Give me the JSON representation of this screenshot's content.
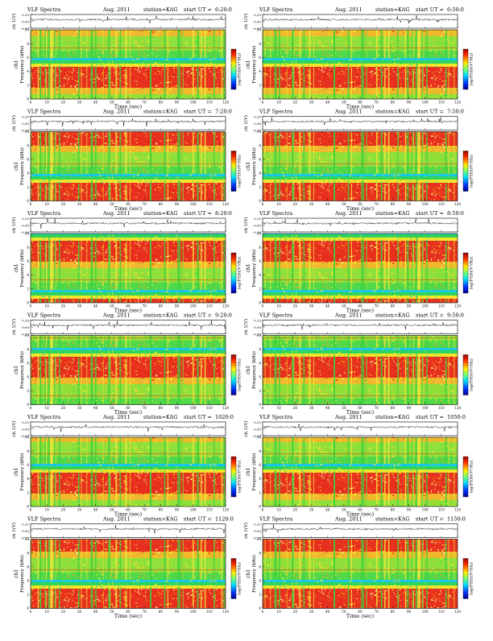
{
  "figure": {
    "header_left": "VLF Spectra",
    "header_date": "Aug. 2011",
    "header_station": "station=KAG",
    "header_start": "start UT ="
  },
  "common": {
    "waveform_ylabel": "ch 1(V)",
    "channel_label": "ch1",
    "freq_ylabel": "Frequency (kHz)",
    "xlabel": "Time (sec)",
    "colorbar_label": "log(PSD)(V²/Hz)",
    "waveform_ticks": [
      "0.20",
      "0.00",
      "-0.20"
    ],
    "freq_ticks": [
      "0",
      "2",
      "4",
      "6",
      "8",
      "10"
    ],
    "x_ticks": [
      "0",
      "10",
      "20",
      "30",
      "40",
      "50",
      "60",
      "70",
      "80",
      "90",
      "100",
      "110",
      "120"
    ],
    "colorbar_ticks": [
      "-",
      "-",
      "-",
      "-",
      "-"
    ]
  },
  "chart_data": [
    {
      "type": "heatmap",
      "start_ut": "6:20:0",
      "x_range": [
        0,
        120
      ],
      "y_range": [
        0,
        10
      ],
      "xlabel": "Time (sec)",
      "ylabel": "Frequency (kHz)",
      "colormap": "jet",
      "colorbar_label": "log(PSD)(V²/Hz)",
      "waveform_ylim": [
        -0.2,
        0.2
      ]
    },
    {
      "type": "heatmap",
      "start_ut": "6:50:0",
      "x_range": [
        0,
        120
      ],
      "y_range": [
        0,
        10
      ],
      "xlabel": "Time (sec)",
      "ylabel": "Frequency (kHz)",
      "colormap": "jet",
      "colorbar_label": "log(PSD)(V²/Hz)",
      "waveform_ylim": [
        -0.2,
        0.2
      ]
    },
    {
      "type": "heatmap",
      "start_ut": "7:20:0",
      "x_range": [
        0,
        120
      ],
      "y_range": [
        0,
        10
      ],
      "xlabel": "Time (sec)",
      "ylabel": "Frequency (kHz)",
      "colormap": "jet",
      "colorbar_label": "log(PSD)(V²/Hz)",
      "waveform_ylim": [
        -0.2,
        0.2
      ]
    },
    {
      "type": "heatmap",
      "start_ut": "7:50:0",
      "x_range": [
        0,
        120
      ],
      "y_range": [
        0,
        10
      ],
      "xlabel": "Time (sec)",
      "ylabel": "Frequency (kHz)",
      "colormap": "jet",
      "colorbar_label": "log(PSD)(V²/Hz)",
      "waveform_ylim": [
        -0.2,
        0.2
      ]
    },
    {
      "type": "heatmap",
      "start_ut": "8:20:0",
      "x_range": [
        0,
        120
      ],
      "y_range": [
        0,
        10
      ],
      "xlabel": "Time (sec)",
      "ylabel": "Frequency (kHz)",
      "colormap": "jet",
      "colorbar_label": "log(PSD)(V²/Hz)",
      "waveform_ylim": [
        -0.2,
        0.2
      ]
    },
    {
      "type": "heatmap",
      "start_ut": "8:50:0",
      "x_range": [
        0,
        120
      ],
      "y_range": [
        0,
        10
      ],
      "xlabel": "Time (sec)",
      "ylabel": "Frequency (kHz)",
      "colormap": "jet",
      "colorbar_label": "log(PSD)(V²/Hz)",
      "waveform_ylim": [
        -0.2,
        0.2
      ]
    },
    {
      "type": "heatmap",
      "start_ut": "9:20:0",
      "x_range": [
        0,
        120
      ],
      "y_range": [
        0,
        10
      ],
      "xlabel": "Time (sec)",
      "ylabel": "Frequency (kHz)",
      "colormap": "jet",
      "colorbar_label": "log(PSD)(V²/Hz)",
      "waveform_ylim": [
        -0.2,
        0.2
      ]
    },
    {
      "type": "heatmap",
      "start_ut": "9:50:0",
      "x_range": [
        0,
        120
      ],
      "y_range": [
        0,
        10
      ],
      "xlabel": "Time (sec)",
      "ylabel": "Frequency (kHz)",
      "colormap": "jet",
      "colorbar_label": "log(PSD)(V²/Hz)",
      "waveform_ylim": [
        -0.2,
        0.2
      ]
    },
    {
      "type": "heatmap",
      "start_ut": "1020:0",
      "x_range": [
        0,
        120
      ],
      "y_range": [
        0,
        10
      ],
      "xlabel": "Time (sec)",
      "ylabel": "Frequency (kHz)",
      "colormap": "jet",
      "colorbar_label": "log(PSD)(V²/Hz)",
      "waveform_ylim": [
        -0.2,
        0.2
      ]
    },
    {
      "type": "heatmap",
      "start_ut": "1050:0",
      "x_range": [
        0,
        120
      ],
      "y_range": [
        0,
        10
      ],
      "xlabel": "Time (sec)",
      "ylabel": "Frequency (kHz)",
      "colormap": "jet",
      "colorbar_label": "log(PSD)(V²/Hz)",
      "waveform_ylim": [
        -0.2,
        0.2
      ]
    },
    {
      "type": "heatmap",
      "start_ut": "1120:0",
      "x_range": [
        0,
        120
      ],
      "y_range": [
        0,
        10
      ],
      "xlabel": "Time (sec)",
      "ylabel": "Frequency (kHz)",
      "colormap": "jet",
      "colorbar_label": "log(PSD)(V²/Hz)",
      "waveform_ylim": [
        -0.2,
        0.2
      ]
    },
    {
      "type": "heatmap",
      "start_ut": "1150:0",
      "x_range": [
        0,
        120
      ],
      "y_range": [
        0,
        10
      ],
      "xlabel": "Time (sec)",
      "ylabel": "Frequency (kHz)",
      "colormap": "jet",
      "colorbar_label": "log(PSD)(V²/Hz)",
      "waveform_ylim": [
        -0.2,
        0.2
      ]
    }
  ]
}
